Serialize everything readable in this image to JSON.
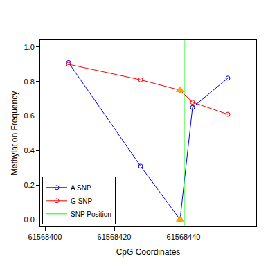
{
  "chart_data": {
    "type": "line",
    "x_label": "CpG Coordinates",
    "y_label": "Methylation Frequency",
    "xlim": [
      61568398.6,
      61568461
    ],
    "xticks": [
      61568400,
      61568420,
      61568440
    ],
    "ylim": [
      -0.04,
      1.04
    ],
    "yticks": [
      {
        "value": 0,
        "label": "0.0"
      },
      {
        "value": 0.2,
        "label": "0.2"
      },
      {
        "value": 0.4,
        "label": "0.4"
      },
      {
        "value": 0.6,
        "label": "0.6"
      },
      {
        "value": 0.8,
        "label": "0.8"
      },
      {
        "value": 1,
        "label": "1.0"
      }
    ],
    "legend": "lower left",
    "series": [
      {
        "name": "A SNP",
        "color": "#0000ff",
        "marker": "open circle",
        "x": [
          61568406.8,
          61568427.6,
          61568439,
          61568442.6,
          61568452.8
        ],
        "values": [
          0.91,
          0.31,
          0.0,
          0.65,
          0.82
        ]
      },
      {
        "name": "G SNP",
        "color": "#ff0000",
        "marker": "open circle",
        "x": [
          61568406.8,
          61568427.6,
          61568439,
          61568442.6,
          61568452.8
        ],
        "values": [
          0.9,
          0.81,
          0.75,
          0.68,
          0.61
        ]
      },
      {
        "type": "scatter",
        "color": "#ffa500",
        "marker": "triangle",
        "x": [
          61568439,
          61568439
        ],
        "values": [
          0.75,
          0.0
        ]
      },
      {
        "name": "SNP Position",
        "type": "vline",
        "color": "#00ff00",
        "x": [
          61568440.2
        ]
      }
    ]
  }
}
